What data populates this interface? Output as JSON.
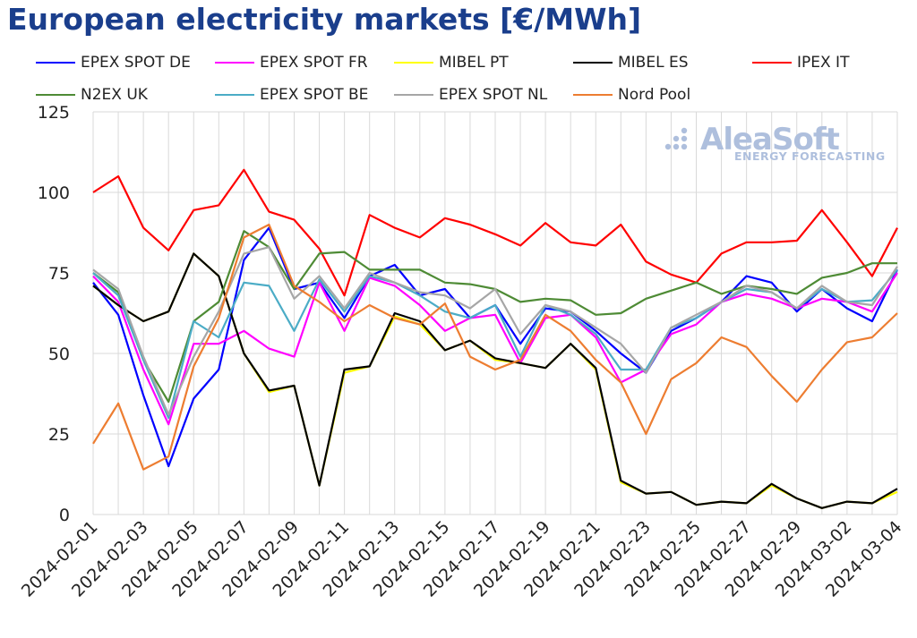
{
  "title": "European electricity markets [€/MWh]",
  "logo": {
    "name": "AleaSoft",
    "tagline": "ENERGY FORECASTING"
  },
  "chart_data": {
    "type": "line",
    "title": "European electricity markets [€/MWh]",
    "xlabel": "",
    "ylabel": "",
    "ylim": [
      0,
      125
    ],
    "yticks": [
      0,
      25,
      50,
      75,
      100,
      125
    ],
    "grid": true,
    "legend_position": "top",
    "x": [
      "2024-02-01",
      "2024-02-02",
      "2024-02-03",
      "2024-02-04",
      "2024-02-05",
      "2024-02-06",
      "2024-02-07",
      "2024-02-08",
      "2024-02-09",
      "2024-02-10",
      "2024-02-11",
      "2024-02-12",
      "2024-02-13",
      "2024-02-14",
      "2024-02-15",
      "2024-02-16",
      "2024-02-17",
      "2024-02-18",
      "2024-02-19",
      "2024-02-20",
      "2024-02-21",
      "2024-02-22",
      "2024-02-23",
      "2024-02-24",
      "2024-02-25",
      "2024-02-26",
      "2024-02-27",
      "2024-02-28",
      "2024-02-29",
      "2024-03-01",
      "2024-03-02",
      "2024-03-03",
      "2024-03-04"
    ],
    "xticks": [
      "2024-02-01",
      "2024-02-03",
      "2024-02-05",
      "2024-02-07",
      "2024-02-09",
      "2024-02-11",
      "2024-02-13",
      "2024-02-15",
      "2024-02-17",
      "2024-02-19",
      "2024-02-21",
      "2024-02-23",
      "2024-02-25",
      "2024-02-27",
      "2024-02-29",
      "2024-03-02",
      "2024-03-04"
    ],
    "series": [
      {
        "name": "EPEX SPOT DE",
        "color": "#0000ff",
        "values": [
          72,
          62,
          37,
          15,
          36,
          45,
          79,
          89,
          70,
          72,
          61,
          74,
          77.5,
          68,
          70,
          61,
          65,
          53,
          64,
          63,
          57,
          50,
          44,
          57,
          61,
          66,
          74,
          72,
          63,
          70,
          64,
          60,
          76
        ]
      },
      {
        "name": "EPEX SPOT FR",
        "color": "#ff00ff",
        "values": [
          74,
          66,
          45,
          28,
          53,
          53,
          57,
          51.5,
          49,
          72,
          57,
          73.5,
          71,
          65,
          57,
          61,
          62,
          47,
          61,
          62,
          55,
          41,
          45,
          56,
          59,
          66,
          68.5,
          67,
          64,
          67,
          66,
          63,
          75
        ]
      },
      {
        "name": "MIBEL PT",
        "color": "#ffff00",
        "values": [
          71,
          65,
          60,
          63,
          81,
          74,
          50,
          38,
          40,
          9,
          44,
          46,
          61.5,
          59,
          51,
          54,
          48,
          47,
          45.5,
          53,
          45,
          10,
          6.5,
          7,
          3,
          4,
          3.5,
          9,
          5,
          2,
          4,
          3.5,
          7
        ]
      },
      {
        "name": "MIBEL ES",
        "color": "#000000",
        "values": [
          71,
          65,
          60,
          63,
          81,
          74,
          50,
          38.5,
          40,
          9,
          45,
          46,
          62.5,
          60,
          51,
          54,
          48.5,
          47,
          45.5,
          53,
          45.5,
          10.5,
          6.5,
          7,
          3,
          4,
          3.5,
          9.5,
          5,
          2,
          4,
          3.5,
          8
        ]
      },
      {
        "name": "IPEX IT",
        "color": "#ff0000",
        "values": [
          100,
          105,
          89,
          82,
          94.5,
          96,
          107,
          94,
          91.5,
          82.5,
          68,
          93,
          89,
          86,
          92,
          90,
          87,
          83.5,
          90.5,
          84.5,
          83.5,
          90,
          78.5,
          74.5,
          72,
          81,
          84.5,
          84.5,
          85,
          94.5,
          84.5,
          74,
          89
        ]
      },
      {
        "name": "N2EX UK",
        "color": "#4e8b35",
        "values": [
          75,
          69,
          48,
          35,
          60,
          66,
          88,
          83,
          70,
          81,
          81.5,
          76,
          76,
          76,
          72,
          71.5,
          70,
          66,
          67,
          66.5,
          62,
          62.5,
          67,
          69.5,
          72,
          68.5,
          71,
          70,
          68.5,
          73.5,
          75,
          78,
          78
        ]
      },
      {
        "name": "EPEX SPOT BE",
        "color": "#4bacc6",
        "values": [
          75,
          68,
          48,
          30,
          60,
          55,
          72,
          71,
          57,
          73,
          63,
          74,
          72,
          68,
          63,
          61,
          65,
          49,
          65,
          62,
          56,
          45,
          45,
          58,
          61,
          66,
          70,
          69,
          64,
          70,
          66,
          66.5,
          76
        ]
      },
      {
        "name": "EPEX SPOT NL",
        "color": "#a6a6a6",
        "values": [
          76,
          70,
          49,
          31,
          49,
          63,
          81,
          83,
          67,
          74,
          64,
          75,
          72,
          69,
          68,
          64,
          70,
          56,
          65,
          63,
          58,
          53,
          44,
          58,
          62,
          66,
          71,
          69,
          64,
          71,
          66,
          65,
          77
        ]
      },
      {
        "name": "Nord Pool",
        "color": "#ed7d31",
        "values": [
          22,
          34.5,
          14,
          18,
          46,
          61,
          86,
          90,
          71,
          66,
          60,
          65,
          61,
          59,
          65.5,
          49,
          45,
          48,
          62,
          57,
          48,
          41,
          25,
          42,
          47,
          55,
          52,
          43,
          35,
          45,
          53.5,
          55,
          62.5
        ]
      }
    ]
  }
}
